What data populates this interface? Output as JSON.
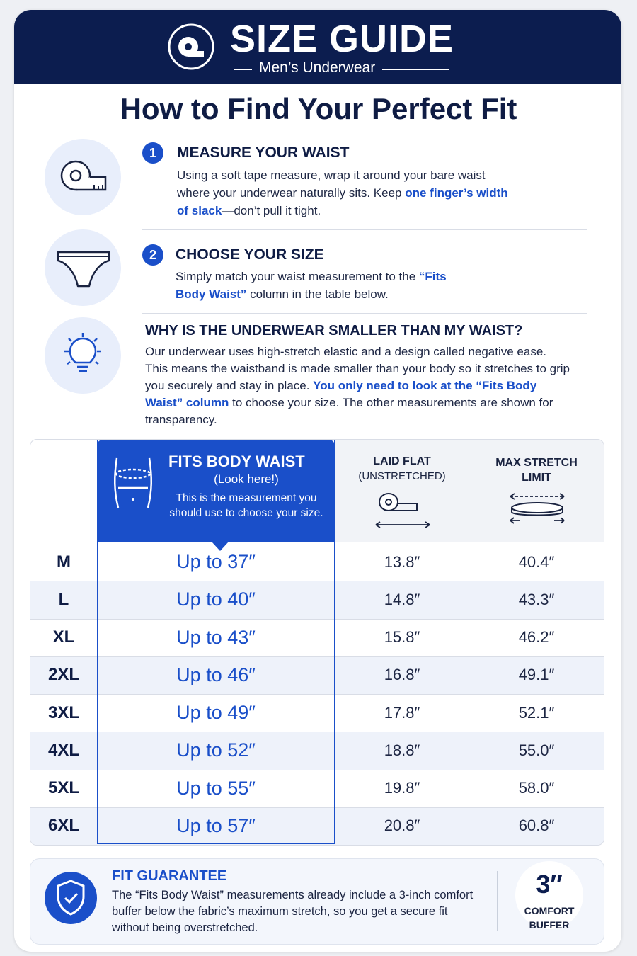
{
  "header": {
    "title": "SIZE GUIDE",
    "subtitle": "Men’s Underwear"
  },
  "heading": "How to Find Your Perfect Fit",
  "steps": [
    {
      "number": "1",
      "title": "MEASURE YOUR WAIST",
      "body": [
        "Using a soft tape measure, wrap it around your bare waist where your underwear naturally sits. Keep ",
        "one finger’s width of slack",
        "—don’t pull it tight."
      ]
    },
    {
      "number": "2",
      "title": "CHOOSE YOUR SIZE",
      "body": [
        "Simply match your waist measurement to the ",
        "“Fits Body Waist”",
        " column in the table below."
      ]
    },
    {
      "title": "WHY IS THE UNDERWEAR SMALLER THAN MY WAIST?",
      "body": [
        "Our underwear uses high-stretch elastic and a design called negative ease. This means the waistband is made smaller than your body so it stretches to grip you securely and stay in place. ",
        "You only need to look at the “Fits Body Waist” column",
        " to choose your size. The other measurements are shown for transparency."
      ]
    }
  ],
  "table": {
    "columns": [
      {
        "title": "FITS BODY WAIST",
        "note": "(Look here!)",
        "description": "This is the measurement you should use to choose your size."
      },
      {
        "title": "LAID FLAT",
        "note": "(UNSTRETCHED)"
      },
      {
        "title": "MAX STRETCH LIMIT"
      }
    ],
    "rows": [
      [
        "M",
        "Up to 37″",
        "13.8″",
        "40.4″"
      ],
      [
        "L",
        "Up to 40″",
        "14.8″",
        "43.3″"
      ],
      [
        "XL",
        "Up to 43″",
        "15.8″",
        "46.2″"
      ],
      [
        "2XL",
        "Up to 46″",
        "16.8″",
        "49.1″"
      ],
      [
        "3XL",
        "Up to 49″",
        "17.8″",
        "52.1″"
      ],
      [
        "4XL",
        "Up to 52″",
        "18.8″",
        "55.0″"
      ],
      [
        "5XL",
        "Up to 55″",
        "19.8″",
        "58.0″"
      ],
      [
        "6XL",
        "Up to 57″",
        "20.8″",
        "60.8″"
      ]
    ]
  },
  "guarantee": {
    "title": "FIT GUARANTEE",
    "body": "The “Fits Body Waist” measurements already include a 3-inch comfort buffer below the fabric’s maximum stretch, so you get a secure fit without being overstretched.",
    "badge_value": "3″",
    "badge_label": "COMFORT BUFFER"
  }
}
